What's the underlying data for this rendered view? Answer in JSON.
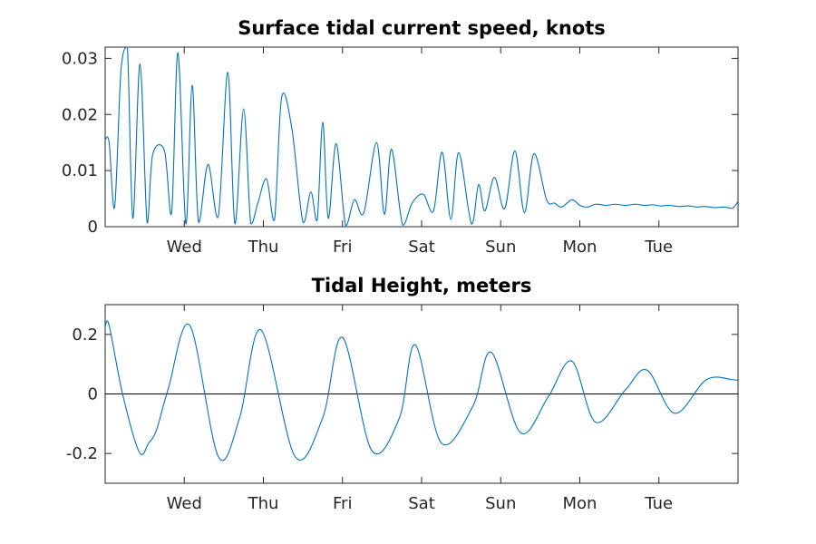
{
  "chart_data": [
    {
      "type": "line",
      "title": "Surface tidal current speed, knots",
      "xlabel": "",
      "ylabel": "",
      "x_unit": "days",
      "xlim": [
        0,
        8
      ],
      "ylim": [
        0,
        0.032
      ],
      "yticks": [
        0,
        0.01,
        0.02,
        0.03
      ],
      "ytick_labels": [
        "0",
        "0.01",
        "0.02",
        "0.03"
      ],
      "xticks": [
        1,
        2,
        3,
        4,
        5,
        6,
        7
      ],
      "xtick_labels": [
        "Wed",
        "Thu",
        "Fri",
        "Sat",
        "Sun",
        "Mon",
        "Tue"
      ],
      "grid": false,
      "series": [
        {
          "color": "#0072bd",
          "x": [
            0,
            0.05,
            0.12,
            0.2,
            0.28,
            0.35,
            0.44,
            0.53,
            0.6,
            0.75,
            0.84,
            0.92,
            1.02,
            1.1,
            1.18,
            1.3,
            1.43,
            1.55,
            1.64,
            1.75,
            1.84,
            1.93,
            2.04,
            2.14,
            2.23,
            2.36,
            2.5,
            2.6,
            2.68,
            2.75,
            2.82,
            2.92,
            3.04,
            3.15,
            3.27,
            3.43,
            3.53,
            3.62,
            3.76,
            3.88,
            4.02,
            4.15,
            4.26,
            4.37,
            4.47,
            4.63,
            4.72,
            4.8,
            4.92,
            5.05,
            5.18,
            5.3,
            5.42,
            5.58,
            5.68,
            5.77,
            5.9,
            6.0,
            6.1,
            6.2,
            6.33,
            6.45,
            6.57,
            6.7,
            6.82,
            6.92,
            7.02,
            7.13,
            7.25,
            7.37,
            7.48,
            7.58,
            7.7,
            7.83,
            7.93,
            8.0
          ],
          "y": [
            0.0155,
            0.015,
            0.0035,
            0.028,
            0.032,
            0.0015,
            0.029,
            0.0007,
            0.0128,
            0.0135,
            0.0025,
            0.031,
            0.0005,
            0.0252,
            0.0008,
            0.0111,
            0.0018,
            0.0275,
            0.0005,
            0.021,
            0.0006,
            0.0042,
            0.0085,
            0.0012,
            0.023,
            0.0175,
            0.0008,
            0.0062,
            0.0012,
            0.0186,
            0.0015,
            0.0148,
            0.0002,
            0.0048,
            0.0025,
            0.015,
            0.0022,
            0.0138,
            0.0003,
            0.0042,
            0.0058,
            0.0028,
            0.0133,
            0.0013,
            0.0132,
            0.0005,
            0.0075,
            0.0028,
            0.0088,
            0.0032,
            0.0135,
            0.0025,
            0.013,
            0.0048,
            0.0042,
            0.0035,
            0.0048,
            0.0038,
            0.0035,
            0.004,
            0.0038,
            0.004,
            0.0038,
            0.004,
            0.0038,
            0.0039,
            0.0037,
            0.0038,
            0.0036,
            0.0037,
            0.0035,
            0.0036,
            0.0034,
            0.0035,
            0.0033,
            0.0045
          ]
        }
      ]
    },
    {
      "type": "line",
      "title": "Tidal Height, meters",
      "xlabel": "",
      "ylabel": "",
      "x_unit": "days",
      "xlim": [
        0,
        8
      ],
      "ylim": [
        -0.3,
        0.3
      ],
      "yticks": [
        -0.2,
        0,
        0.2
      ],
      "ytick_labels": [
        "-0.2",
        "0",
        "0.2"
      ],
      "xticks": [
        1,
        2,
        3,
        4,
        5,
        6,
        7
      ],
      "xtick_labels": [
        "Wed",
        "Thu",
        "Fri",
        "Sat",
        "Sun",
        "Mon",
        "Tue"
      ],
      "grid": false,
      "zero_line": true,
      "series": [
        {
          "color": "#0072bd",
          "x": [
            0,
            0.05,
            0.22,
            0.43,
            0.55,
            0.65,
            0.8,
            1.07,
            1.43,
            1.7,
            1.97,
            2.4,
            2.75,
            3.0,
            3.37,
            3.72,
            3.92,
            4.25,
            4.65,
            4.88,
            5.25,
            5.6,
            5.9,
            6.2,
            6.58,
            6.85,
            7.2,
            7.6,
            7.93,
            8.0
          ],
          "y": [
            0.225,
            0.23,
            0.0,
            -0.195,
            -0.165,
            -0.12,
            0.02,
            0.23,
            -0.21,
            -0.08,
            0.215,
            -0.21,
            -0.08,
            0.19,
            -0.19,
            -0.08,
            0.165,
            -0.165,
            -0.04,
            0.14,
            -0.13,
            -0.01,
            0.11,
            -0.095,
            0.015,
            0.08,
            -0.065,
            0.048,
            0.048,
            0.045
          ]
        }
      ]
    }
  ]
}
